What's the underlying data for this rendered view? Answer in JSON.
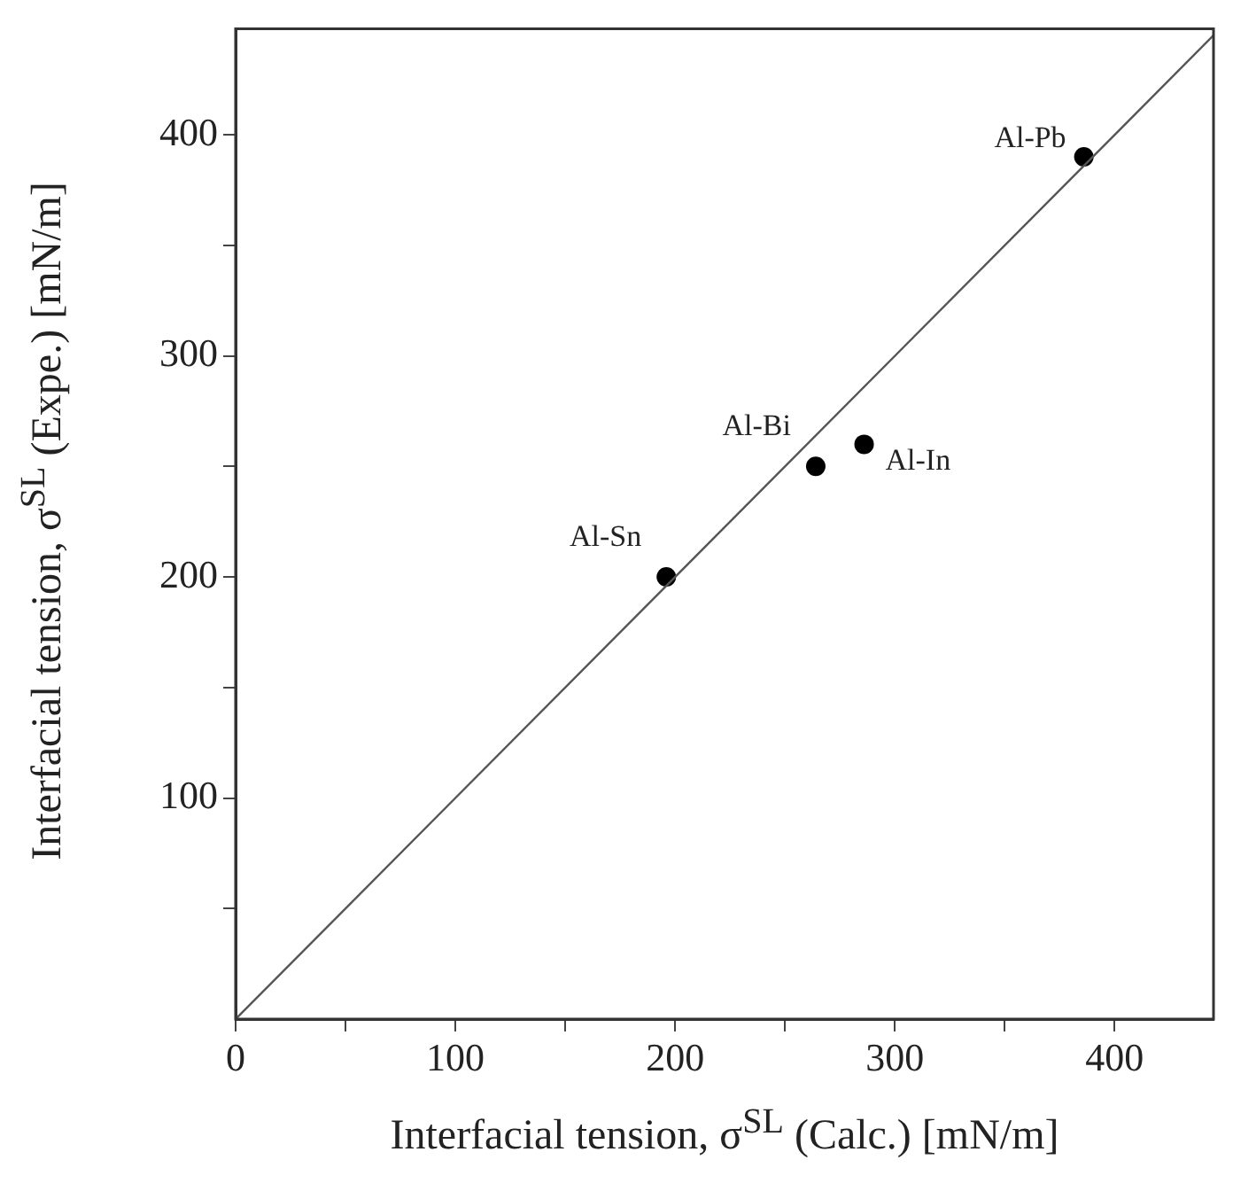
{
  "chart_data": {
    "type": "scatter",
    "xlabel": "Interfacial tension, σ$^{SL}$ (Calc.) [mN/m]",
    "ylabel": "Interfacial tension, σ$^{SL}$ (Expe.) [mN/m]",
    "xlim": [
      0,
      445
    ],
    "ylim": [
      0,
      448
    ],
    "xticks": [
      0,
      {
        "value": 50,
        "label": null
      },
      100,
      {
        "value": 150,
        "label": null
      },
      200,
      {
        "value": 250,
        "label": null
      },
      300,
      {
        "value": 350,
        "label": null
      },
      400
    ],
    "yticks": [
      {
        "value": 50,
        "label": null
      },
      100,
      {
        "value": 150,
        "label": null
      },
      200,
      {
        "value": 250,
        "label": null
      },
      300,
      {
        "value": 350,
        "label": null
      },
      400
    ],
    "marker": "circle",
    "series": [
      {
        "type": "line",
        "color": "#555555",
        "x": [
          0,
          445
        ],
        "values": [
          0,
          445
        ],
        "marker": "none"
      },
      {
        "color": "#000000",
        "x": [
          196,
          264,
          286,
          386
        ],
        "values": [
          200,
          250,
          260,
          390
        ]
      }
    ],
    "annotations": [
      {
        "text": "Al-Sn",
        "x": 196,
        "y": 200
      },
      {
        "text": "Al-Bi",
        "x": 264,
        "y": 250
      },
      {
        "text": "Al-In",
        "x": 286,
        "y": 260
      },
      {
        "text": "Al-Pb",
        "x": 386,
        "y": 390
      }
    ]
  }
}
